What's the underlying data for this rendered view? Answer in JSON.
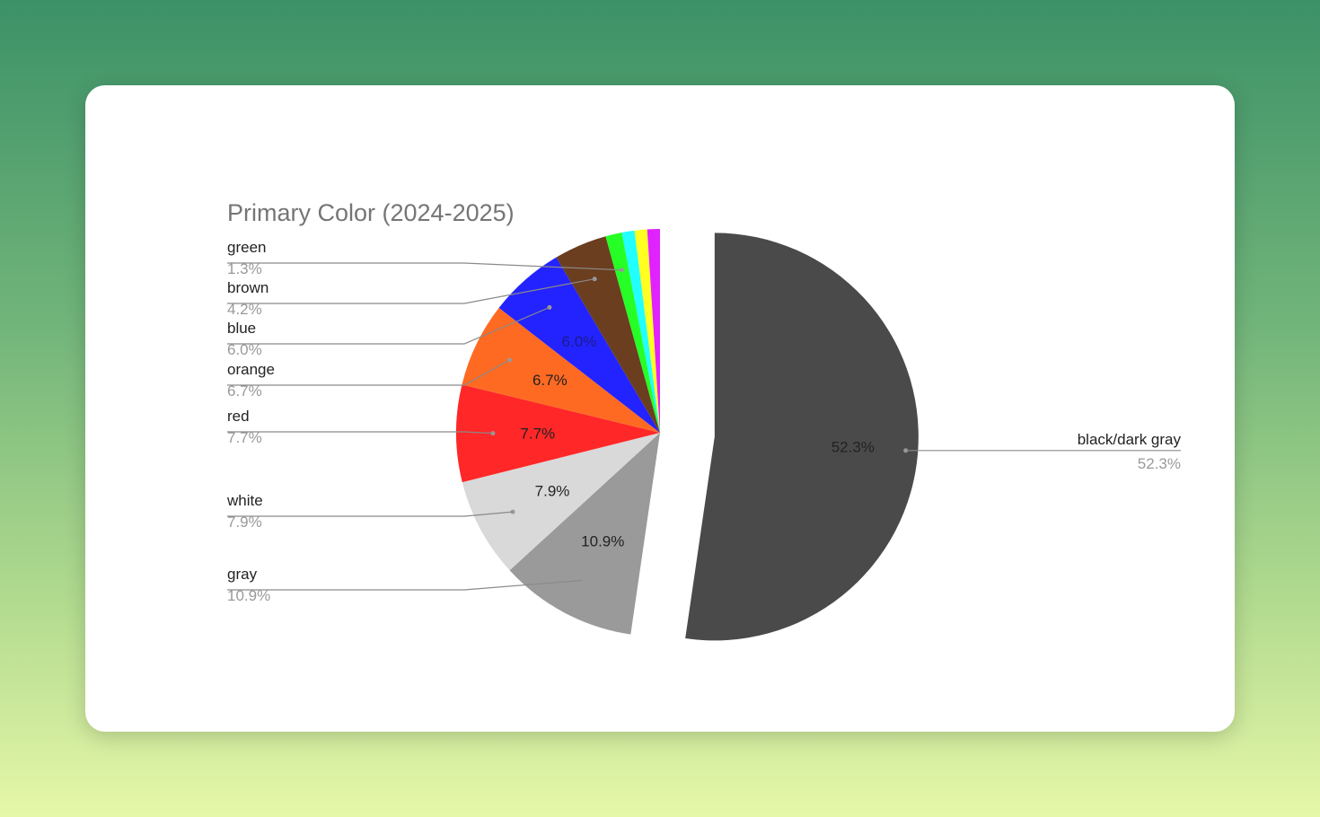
{
  "chart_data": {
    "type": "pie",
    "title": "Primary Color (2024-2025)",
    "slices": [
      {
        "name": "black/dark gray",
        "value": 52.3,
        "pct_label": "52.3%",
        "color": "#4a4a4a",
        "text_color": "#222222"
      },
      {
        "name": "gray",
        "value": 10.9,
        "pct_label": "10.9%",
        "color": "#9a9a9a",
        "text_color": "#222222"
      },
      {
        "name": "white",
        "value": 7.9,
        "pct_label": "7.9%",
        "color": "#d9d9d9",
        "text_color": "#222222"
      },
      {
        "name": "red",
        "value": 7.7,
        "pct_label": "7.7%",
        "color": "#ff2727",
        "text_color": "#222222"
      },
      {
        "name": "orange",
        "value": 6.7,
        "pct_label": "6.7%",
        "color": "#ff6a22",
        "text_color": "#222222"
      },
      {
        "name": "blue",
        "value": 6.0,
        "pct_label": "6.0%",
        "color": "#2323ff",
        "text_color": "#1c1c8a"
      },
      {
        "name": "brown",
        "value": 4.2,
        "pct_label": "4.2%",
        "color": "#6b3e1f",
        "text_color": "#222222"
      },
      {
        "name": "green",
        "value": 1.3,
        "pct_label": "1.3%",
        "color": "#26ff26",
        "text_color": "#222222"
      },
      {
        "name": "",
        "value": 1.0,
        "pct_label": "",
        "color": "#22ffff",
        "text_color": "#222222"
      },
      {
        "name": "",
        "value": 1.0,
        "pct_label": "",
        "color": "#ffff22",
        "text_color": "#222222"
      },
      {
        "name": "",
        "value": 1.0,
        "pct_label": "",
        "color": "#e022ff",
        "text_color": "#222222"
      }
    ],
    "exploded_slice": "black/dark gray",
    "legend": "labels beside slices with leader lines"
  }
}
